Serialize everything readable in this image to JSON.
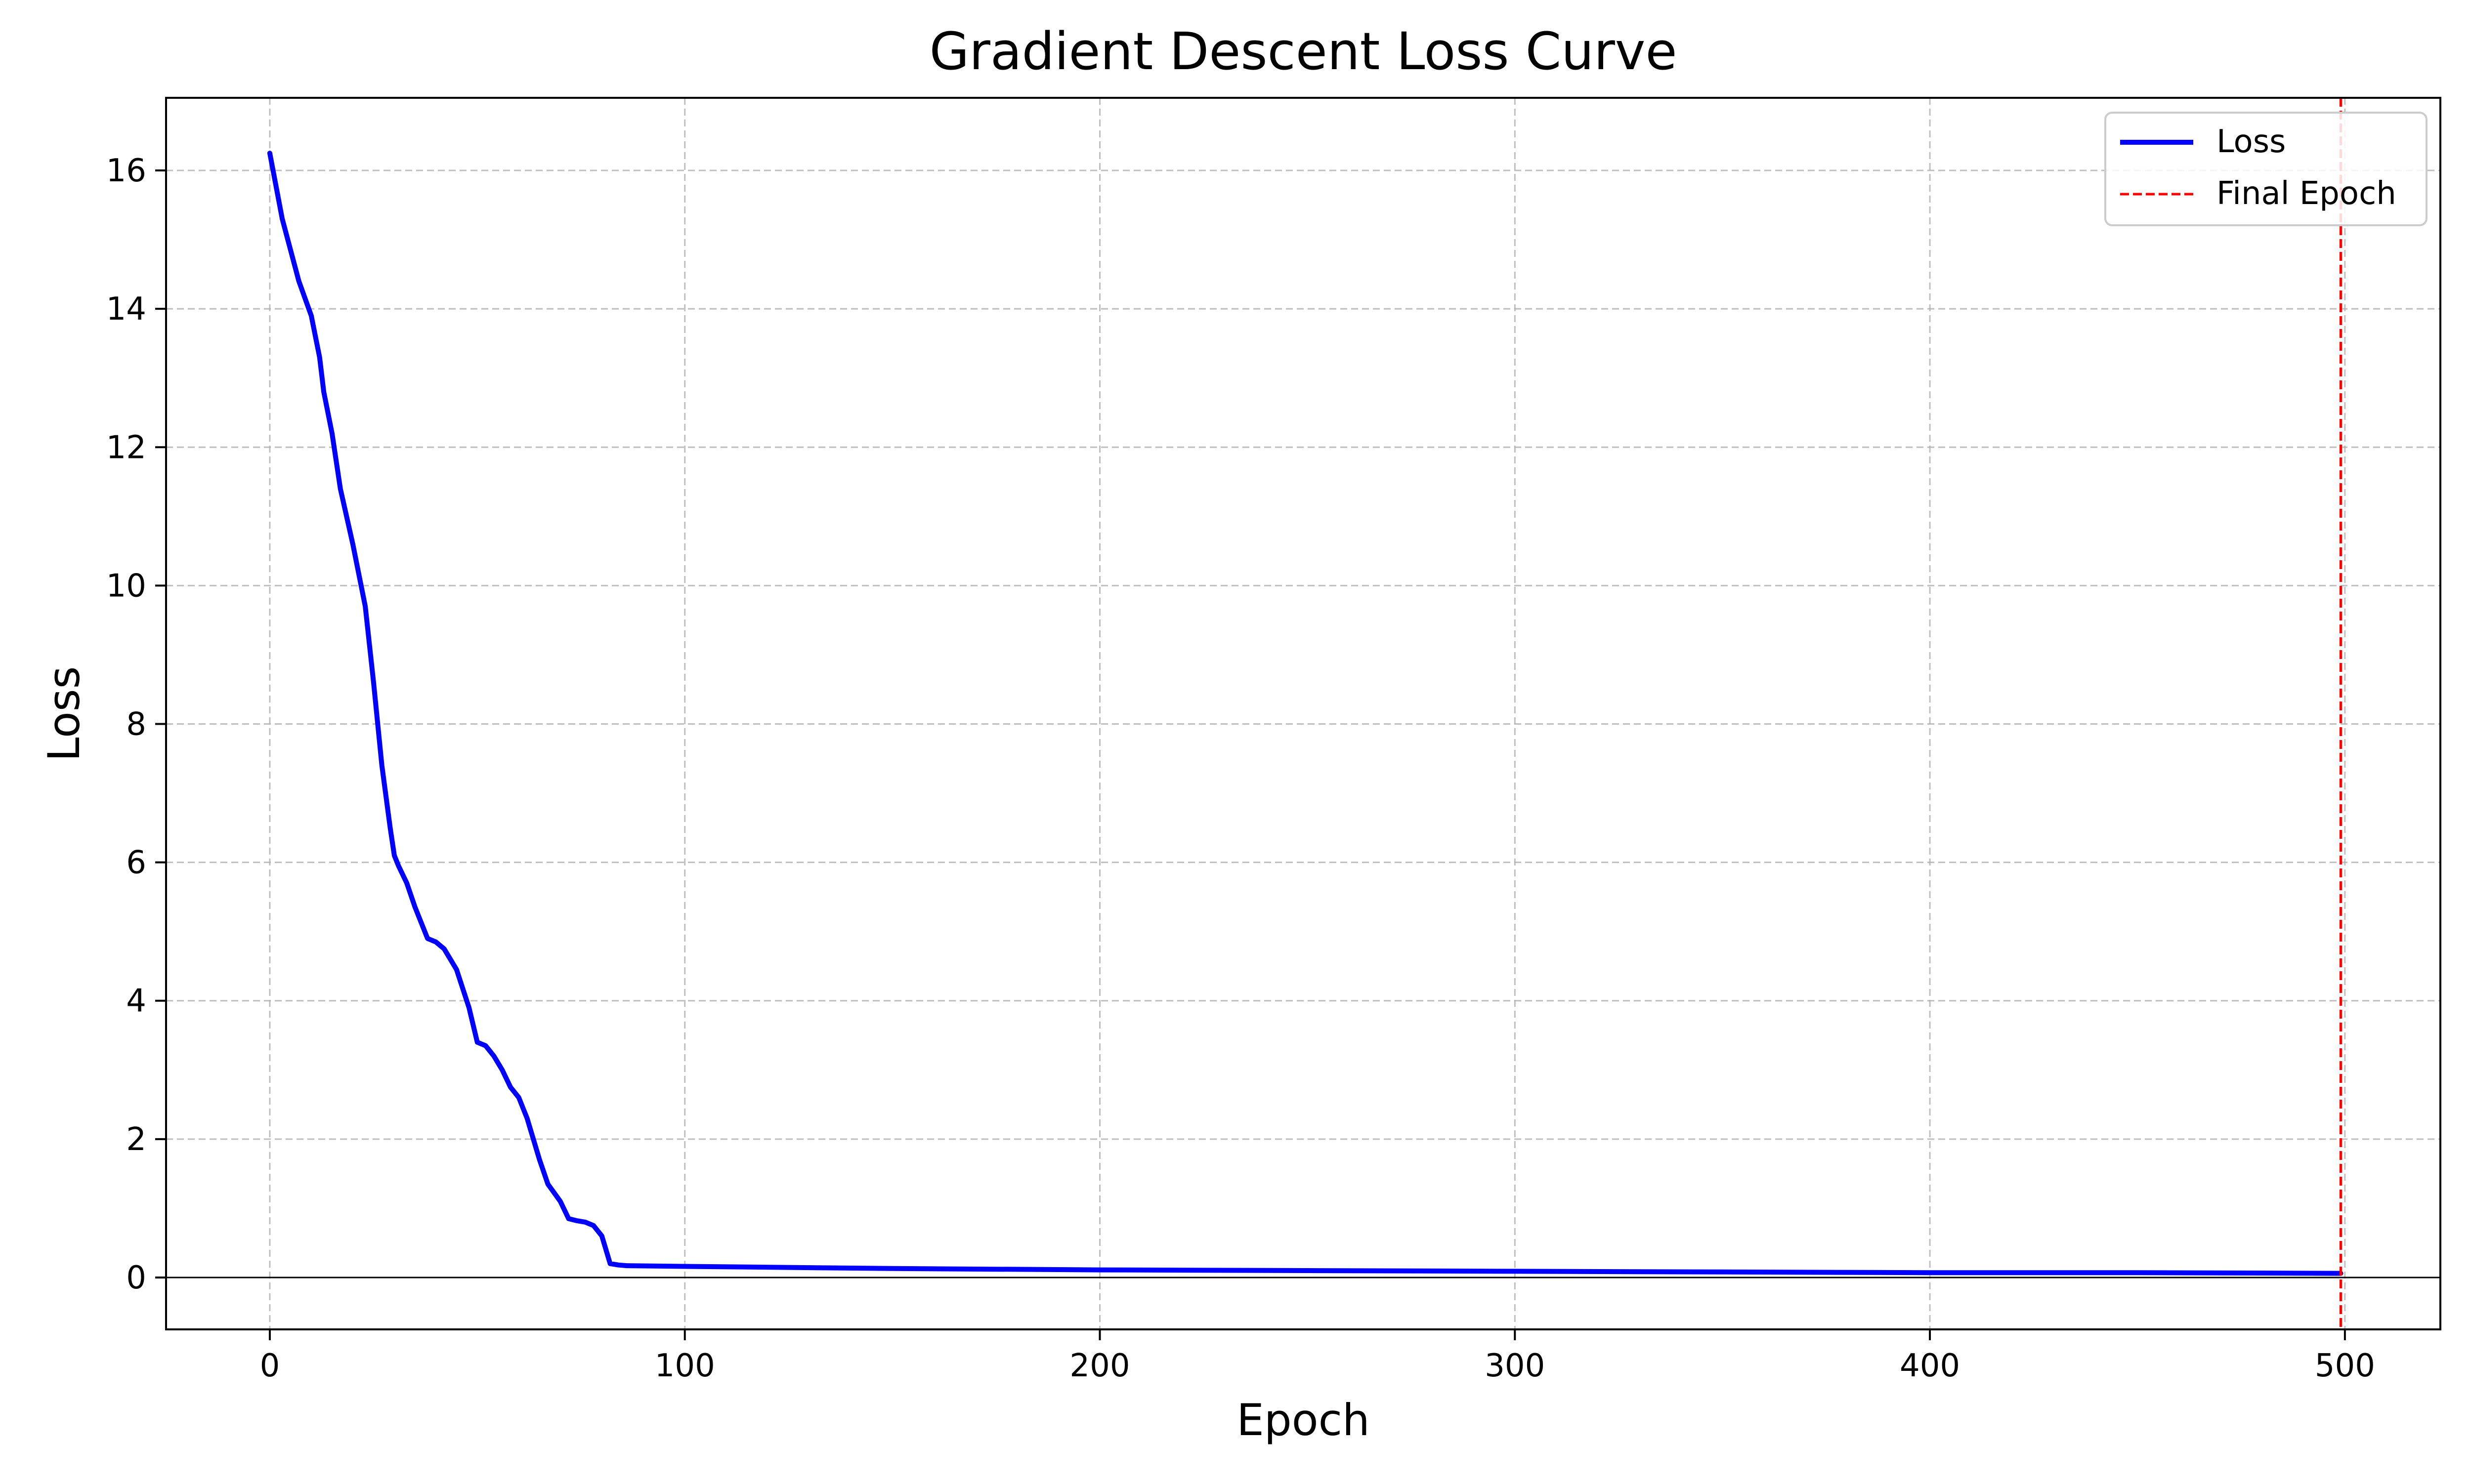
{
  "chart_data": {
    "type": "line",
    "title": "Gradient Descent Loss Curve",
    "xlabel": "Epoch",
    "ylabel": "Loss",
    "xlim": [
      -25,
      523
    ],
    "ylim": [
      -0.75,
      17.05
    ],
    "xticks": [
      0,
      100,
      200,
      300,
      400,
      500
    ],
    "yticks": [
      0,
      2,
      4,
      6,
      8,
      10,
      12,
      14,
      16
    ],
    "grid": true,
    "legend": "top-right",
    "colors": {
      "loss": "#0000ff",
      "final_epoch": "#ff0000",
      "grid": "#b0b0b0",
      "baseline": "#000000"
    },
    "series": [
      {
        "name": "Loss",
        "style": "solid",
        "x": [
          0,
          3,
          7,
          10,
          12,
          13,
          15,
          17,
          20,
          23,
          25,
          27,
          29,
          30,
          31,
          33,
          35,
          38,
          40,
          42,
          45,
          48,
          50,
          52,
          54,
          56,
          58,
          60,
          62,
          65,
          67,
          70,
          72,
          74,
          76,
          78,
          80,
          82,
          84,
          86,
          100,
          150,
          200,
          250,
          300,
          350,
          400,
          450,
          499
        ],
        "y": [
          16.25,
          15.3,
          14.4,
          13.9,
          13.3,
          12.8,
          12.2,
          11.4,
          10.6,
          9.7,
          8.6,
          7.4,
          6.5,
          6.1,
          5.95,
          5.7,
          5.35,
          4.9,
          4.85,
          4.75,
          4.45,
          3.9,
          3.4,
          3.35,
          3.2,
          3.0,
          2.75,
          2.6,
          2.3,
          1.7,
          1.35,
          1.1,
          0.85,
          0.82,
          0.8,
          0.75,
          0.6,
          0.2,
          0.18,
          0.17,
          0.16,
          0.13,
          0.11,
          0.1,
          0.09,
          0.08,
          0.07,
          0.07,
          0.06
        ]
      },
      {
        "name": "Final Epoch",
        "style": "dashed",
        "x_value": 499
      }
    ]
  }
}
